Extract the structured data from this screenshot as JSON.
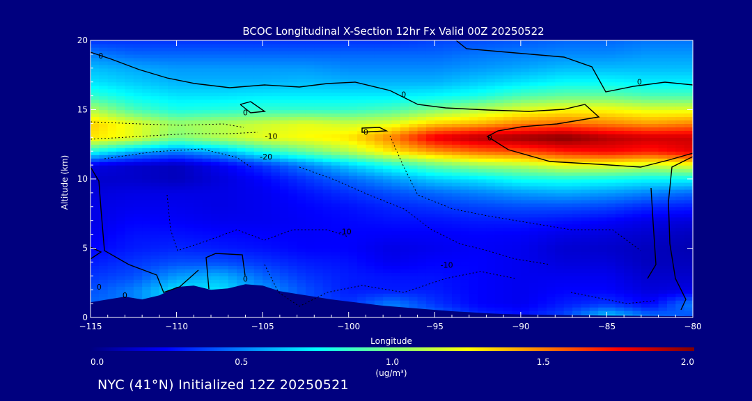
{
  "chart_data": {
    "type": "heatmap",
    "title": "BCOC Longitudinal X-Section 12hr  Fx Valid 00Z 20250522",
    "xlabel": "Longitude",
    "ylabel": "Altitude (km)",
    "xlim": [
      -115,
      -80
    ],
    "ylim": [
      0,
      20
    ],
    "x_ticks": [
      -115,
      -110,
      -105,
      -100,
      -95,
      -90,
      -85,
      -80
    ],
    "x_tick_labels": [
      "−115",
      "−110",
      "−105",
      "−100",
      "−95",
      "−90",
      "−85",
      "−80"
    ],
    "y_ticks": [
      0,
      5,
      10,
      15,
      20
    ],
    "y_tick_labels": [
      "0",
      "5",
      "10",
      "15",
      "20"
    ],
    "colorbar": {
      "min": 0.0,
      "max": 2.0,
      "ticks": [
        0.0,
        0.5,
        1.0,
        1.5,
        2.0
      ],
      "tick_labels": [
        "0.0",
        "0.5",
        "1.0",
        "1.5",
        "2.0"
      ],
      "label": "(ug/m³)",
      "colormap": [
        "#00007f",
        "#0000ff",
        "#0080ff",
        "#00ffff",
        "#80ff80",
        "#ffff00",
        "#ff8000",
        "#ff0000",
        "#800000"
      ]
    },
    "x": [
      -115,
      -112.5,
      -110,
      -107.5,
      -105,
      -102.5,
      -100,
      -97.5,
      -95,
      -92.5,
      -90,
      -87.5,
      -85,
      -82.5,
      -80
    ],
    "y": [
      0,
      1,
      2,
      3,
      4,
      5,
      6,
      7,
      8,
      9,
      10,
      11,
      12,
      13,
      14,
      15,
      16,
      17,
      18,
      19,
      20
    ],
    "z": [
      [
        0.4,
        0.4,
        0.4,
        0.4,
        0.4,
        0.4,
        0.4,
        0.5,
        0.5,
        0.35,
        0.3,
        0.4,
        0.7,
        0.5,
        0.4
      ],
      [
        0.45,
        0.5,
        0.7,
        0.75,
        0.55,
        0.4,
        0.35,
        0.5,
        0.35,
        0.25,
        0.22,
        0.3,
        0.35,
        0.25,
        0.5
      ],
      [
        0.4,
        0.5,
        0.7,
        0.7,
        0.55,
        0.4,
        0.3,
        0.3,
        0.3,
        0.25,
        0.22,
        0.25,
        0.25,
        0.18,
        0.2
      ],
      [
        0.35,
        0.4,
        0.55,
        0.6,
        0.45,
        0.35,
        0.3,
        0.28,
        0.28,
        0.25,
        0.22,
        0.22,
        0.22,
        0.15,
        0.15
      ],
      [
        0.3,
        0.35,
        0.4,
        0.4,
        0.35,
        0.3,
        0.28,
        0.22,
        0.25,
        0.25,
        0.22,
        0.18,
        0.18,
        0.12,
        0.12
      ],
      [
        0.25,
        0.3,
        0.32,
        0.3,
        0.28,
        0.25,
        0.25,
        0.2,
        0.22,
        0.24,
        0.22,
        0.16,
        0.15,
        0.12,
        0.1
      ],
      [
        0.22,
        0.28,
        0.28,
        0.26,
        0.25,
        0.24,
        0.25,
        0.24,
        0.24,
        0.25,
        0.24,
        0.2,
        0.18,
        0.15,
        0.12
      ],
      [
        0.2,
        0.25,
        0.24,
        0.22,
        0.22,
        0.24,
        0.26,
        0.28,
        0.28,
        0.3,
        0.3,
        0.28,
        0.25,
        0.2,
        0.18
      ],
      [
        0.2,
        0.22,
        0.22,
        0.2,
        0.22,
        0.25,
        0.28,
        0.32,
        0.35,
        0.38,
        0.4,
        0.4,
        0.38,
        0.32,
        0.3
      ],
      [
        0.18,
        0.2,
        0.2,
        0.2,
        0.22,
        0.28,
        0.34,
        0.4,
        0.45,
        0.5,
        0.55,
        0.58,
        0.55,
        0.5,
        0.45
      ],
      [
        0.15,
        0.15,
        0.12,
        0.18,
        0.25,
        0.35,
        0.45,
        0.55,
        0.65,
        0.7,
        0.78,
        0.8,
        0.78,
        0.75,
        0.75
      ],
      [
        0.2,
        0.15,
        0.12,
        0.22,
        0.35,
        0.5,
        0.65,
        0.8,
        0.95,
        1.05,
        1.1,
        1.2,
        1.2,
        1.15,
        1.2
      ],
      [
        0.8,
        0.6,
        0.5,
        0.6,
        0.8,
        0.95,
        1.1,
        1.3,
        1.45,
        1.55,
        1.6,
        1.7,
        1.75,
        1.7,
        1.8
      ],
      [
        1.3,
        1.2,
        1.0,
        1.1,
        1.2,
        1.25,
        1.3,
        1.5,
        1.8,
        1.9,
        1.95,
        2.0,
        1.9,
        1.85,
        1.85
      ],
      [
        1.35,
        1.2,
        1.05,
        1.1,
        1.15,
        1.2,
        1.15,
        1.2,
        1.35,
        1.4,
        1.5,
        1.55,
        1.5,
        1.45,
        1.5
      ],
      [
        1.1,
        0.9,
        0.8,
        0.82,
        0.85,
        0.85,
        0.85,
        0.9,
        1.0,
        1.1,
        1.2,
        1.25,
        1.25,
        1.2,
        1.2
      ],
      [
        0.85,
        0.75,
        0.7,
        0.7,
        0.72,
        0.72,
        0.72,
        0.72,
        0.75,
        0.8,
        0.9,
        0.95,
        0.95,
        0.9,
        0.9
      ],
      [
        0.7,
        0.65,
        0.6,
        0.6,
        0.6,
        0.62,
        0.6,
        0.6,
        0.6,
        0.65,
        0.7,
        0.75,
        0.75,
        0.72,
        0.72
      ],
      [
        0.62,
        0.58,
        0.55,
        0.55,
        0.55,
        0.55,
        0.52,
        0.52,
        0.52,
        0.55,
        0.58,
        0.62,
        0.62,
        0.62,
        0.62
      ],
      [
        0.5,
        0.45,
        0.45,
        0.45,
        0.45,
        0.45,
        0.45,
        0.45,
        0.45,
        0.48,
        0.5,
        0.52,
        0.52,
        0.55,
        0.55
      ],
      [
        0.35,
        0.35,
        0.35,
        0.35,
        0.35,
        0.35,
        0.35,
        0.35,
        0.38,
        0.4,
        0.42,
        0.45,
        0.45,
        0.48,
        0.48
      ]
    ],
    "terrain": {
      "x": [
        -115,
        -114,
        -113,
        -112,
        -111,
        -110,
        -109,
        -108,
        -107,
        -106,
        -105,
        -104,
        -103,
        -102,
        -101,
        -100,
        -99,
        -98,
        -97,
        -96,
        -95,
        -94,
        -93,
        -92,
        -91,
        -90,
        -89,
        -88,
        -87,
        -86,
        -85,
        -84,
        -83,
        -82,
        -81,
        -80
      ],
      "height_km": [
        1.1,
        1.3,
        1.5,
        1.3,
        1.6,
        2.2,
        2.3,
        2.0,
        2.1,
        2.4,
        2.3,
        1.9,
        1.7,
        1.5,
        1.3,
        1.15,
        1.0,
        0.85,
        0.75,
        0.65,
        0.55,
        0.45,
        0.38,
        0.3,
        0.25,
        0.22,
        0.2,
        0.18,
        0.16,
        0.15,
        0.14,
        0.13,
        0.12,
        0.11,
        0.1,
        0.1
      ]
    },
    "contour_labels": [
      {
        "text": "0",
        "x": -114.4,
        "y": 18.9
      },
      {
        "text": "0",
        "x": -106,
        "y": 14.8
      },
      {
        "text": "0",
        "x": -96.8,
        "y": 16.1
      },
      {
        "text": "0",
        "x": -83.1,
        "y": 17.0
      },
      {
        "text": "0",
        "x": -99.0,
        "y": 13.4
      },
      {
        "text": "0",
        "x": -91.8,
        "y": 13.0
      },
      {
        "text": "-10",
        "x": -104.5,
        "y": 13.1
      },
      {
        "text": "-20",
        "x": -104.8,
        "y": 11.6
      },
      {
        "text": "-10",
        "x": -100.2,
        "y": 6.2
      },
      {
        "text": "-10",
        "x": -94.3,
        "y": 3.8
      },
      {
        "text": "0",
        "x": -114.5,
        "y": 2.2
      },
      {
        "text": "0",
        "x": -113.0,
        "y": 1.6
      },
      {
        "text": "0",
        "x": -106.0,
        "y": 2.8
      }
    ]
  },
  "footer_text": "NYC (41°N) Initialized 12Z 20250521"
}
